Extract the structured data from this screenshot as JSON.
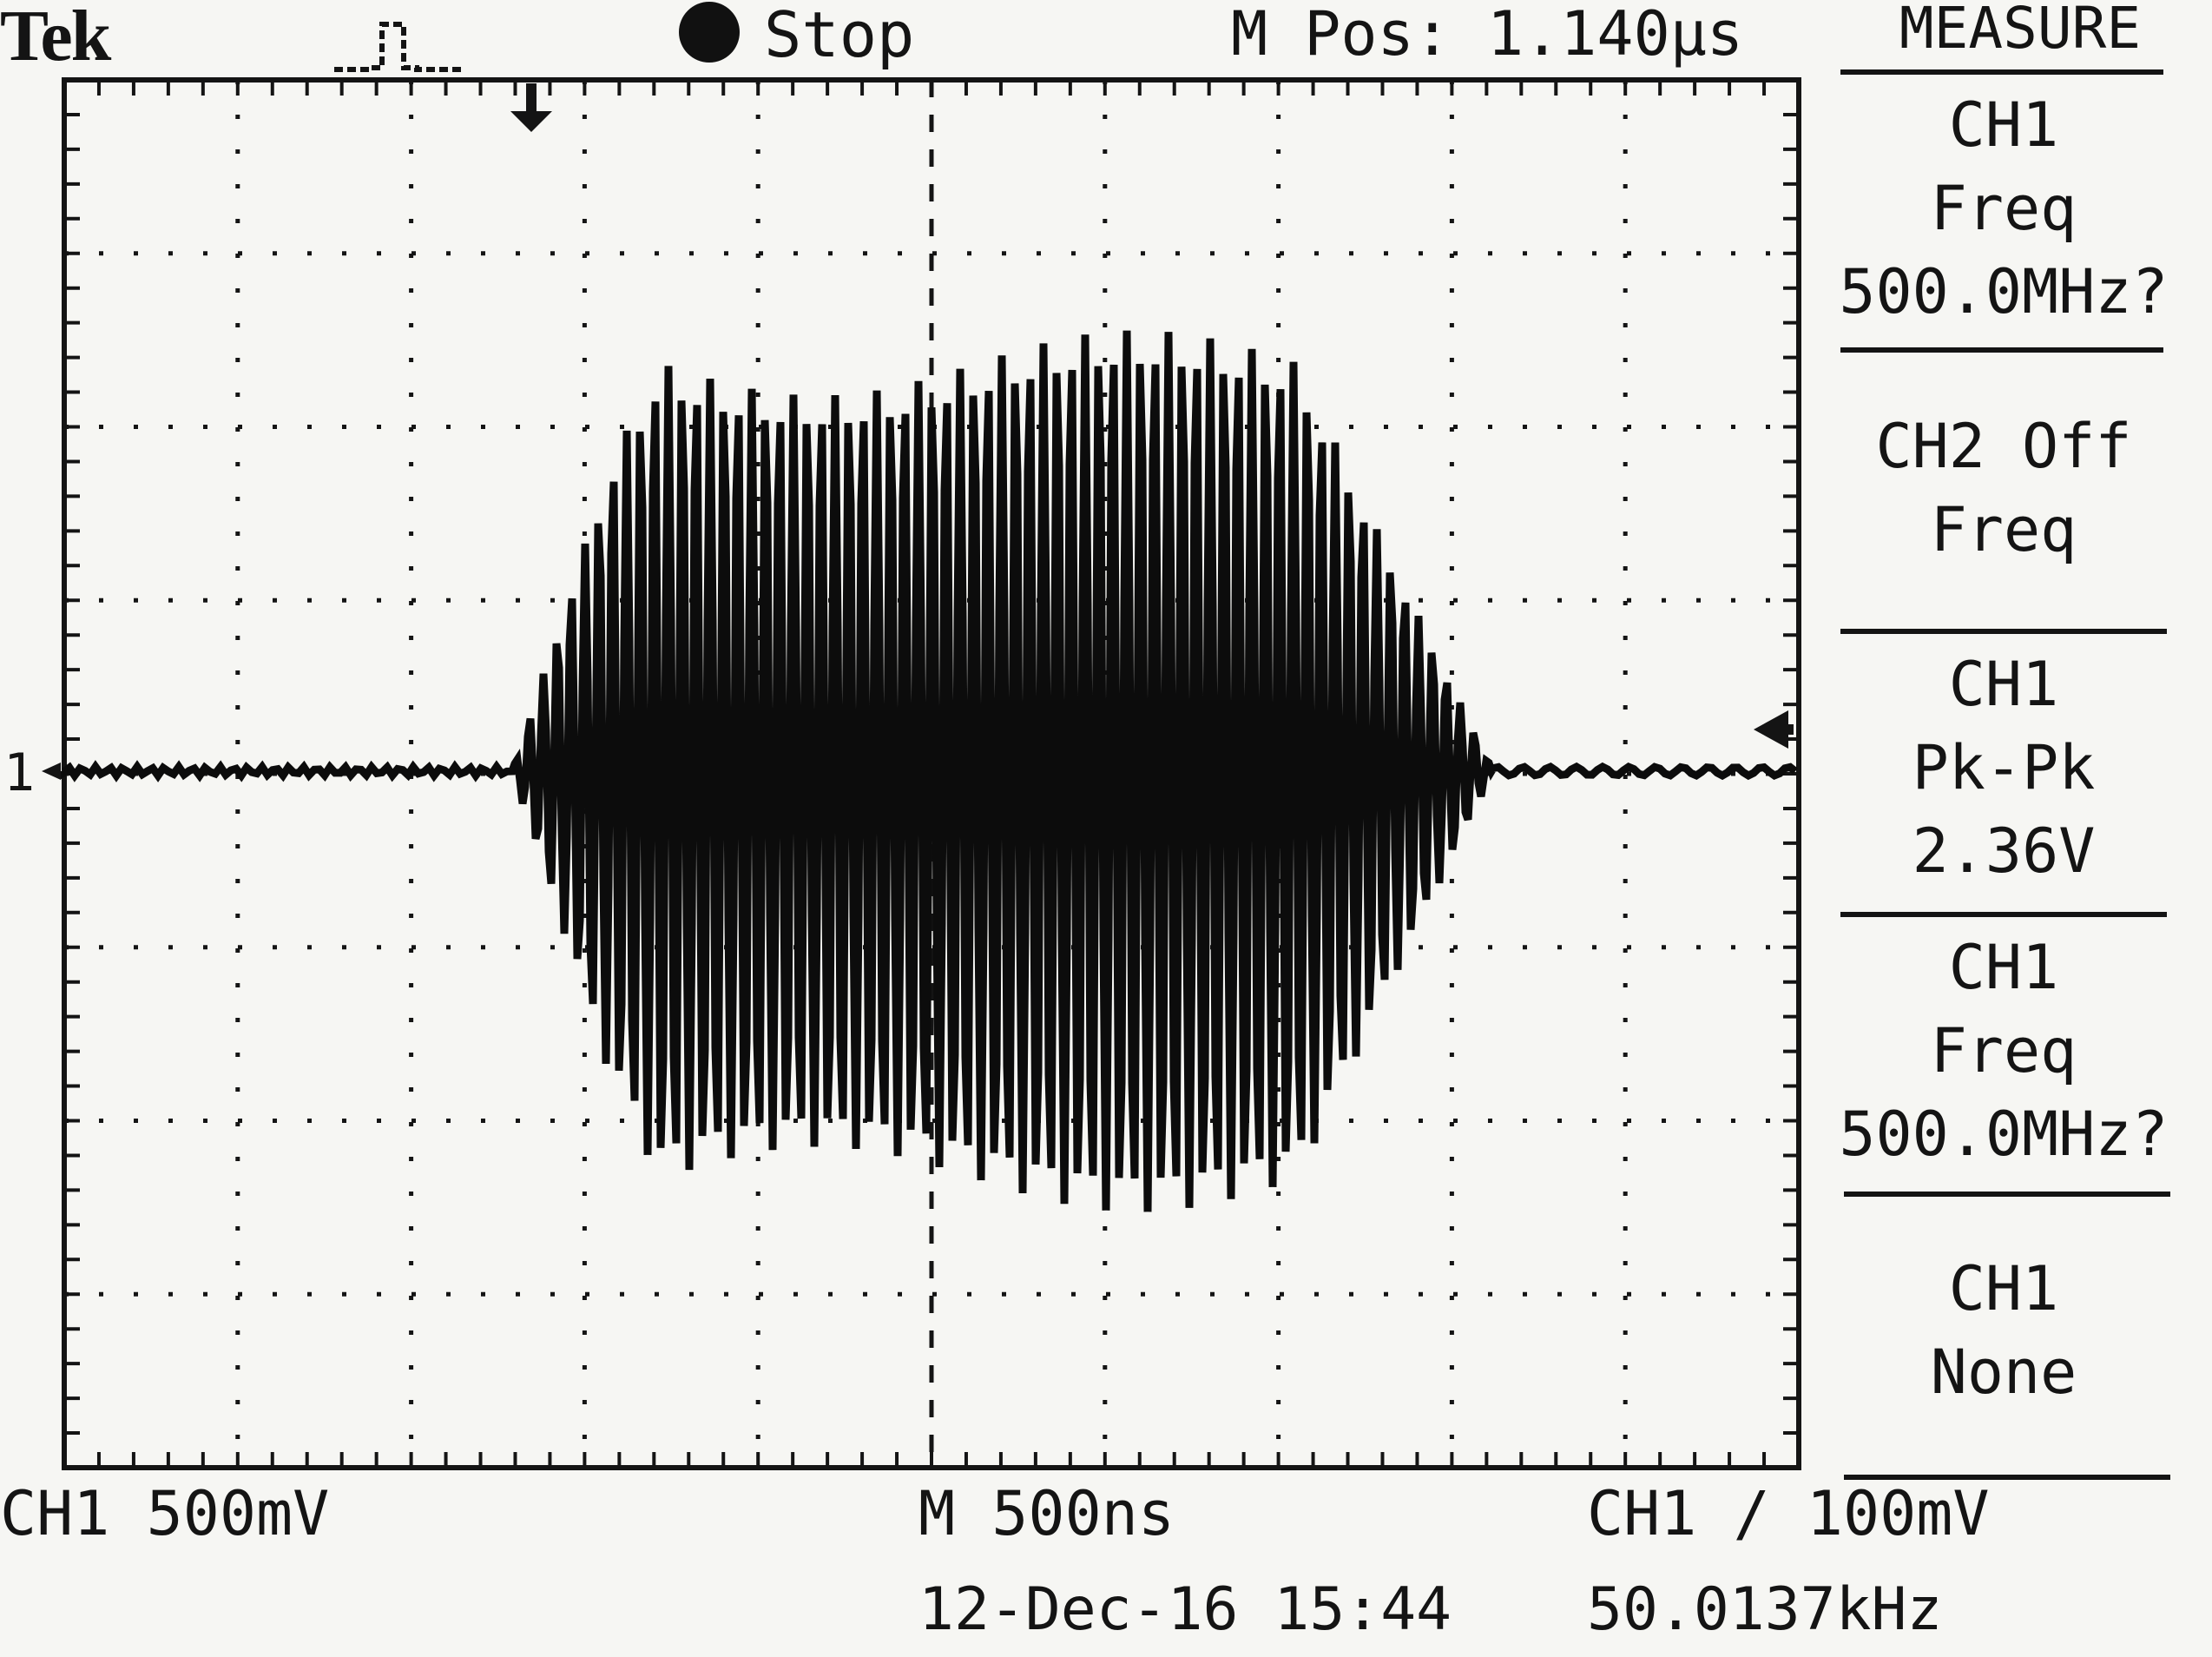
{
  "header": {
    "brand": "Tek",
    "run_state": "Stop",
    "m_pos": "M Pos: 1.140µs"
  },
  "waveform": {
    "channel_marker": "1"
  },
  "measure_menu": {
    "title": "MEASURE",
    "boxes": [
      {
        "lines": [
          "CH1",
          "Freq",
          "500.0MHz?"
        ]
      },
      {
        "lines": [
          "CH2 Off",
          "Freq"
        ]
      },
      {
        "lines": [
          "CH1",
          "Pk-Pk",
          "2.36V"
        ]
      },
      {
        "lines": [
          "CH1",
          "Freq",
          "500.0MHz?"
        ]
      },
      {
        "lines": [
          "CH1",
          "None"
        ]
      }
    ]
  },
  "footer": {
    "ch1_scale": "CH1  500mV",
    "timebase": "M 500ns",
    "trigger": "CH1 ∕ 100mV",
    "datetime": "12-Dec-16 15:44",
    "freq_counter": "50.0137kHz"
  },
  "colors": {
    "background": "#f6f6f3",
    "ink": "#141414"
  }
}
